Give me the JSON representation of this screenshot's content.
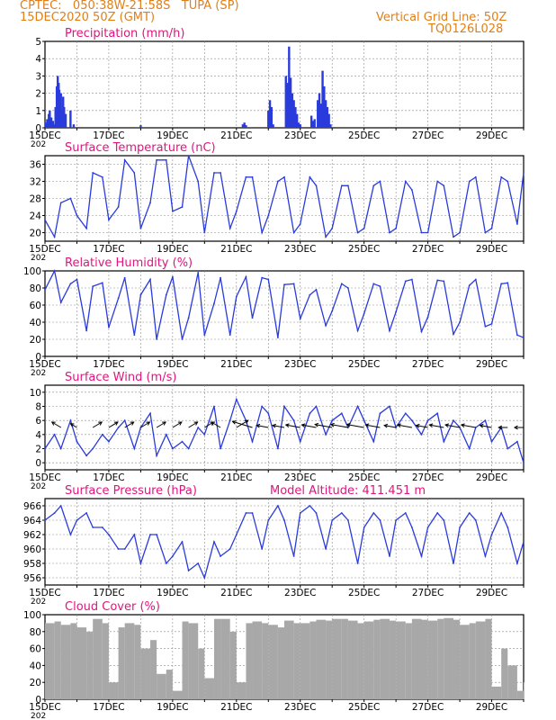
{
  "header": {
    "line1": "CPTEC:   050:38W-21:58S   TUPA (SP)",
    "line2": "15DEC2020 50Z (GMT)",
    "grid_note": "Vertical Grid Line: 50Z",
    "code": "TQ0126L028",
    "altitude": "Model Altitude: 411.451 m"
  },
  "colors": {
    "header": "#e07f18",
    "title": "#e0157d",
    "series": "#2a3bdc",
    "cloud": "#a8a8a8",
    "grid": "#8a8a8a"
  },
  "x_ticks": [
    "15DEC",
    "17DEC",
    "19DEC",
    "21DEC",
    "23DEC",
    "25DEC",
    "27DEC",
    "29DEC"
  ],
  "x_year_label": "202",
  "chart_data": [
    {
      "type": "bar",
      "title": "Precipitation (mm/h)",
      "ylim": [
        0,
        5
      ],
      "yticks": [
        0,
        1,
        2,
        3,
        4,
        5
      ],
      "grid": true,
      "x_unit": "days since 15DEC2020 00Z",
      "series": [
        {
          "x": [
            0.03,
            0.07,
            0.12,
            0.15,
            0.2,
            0.25,
            0.3,
            0.33,
            0.37,
            0.4,
            0.43,
            0.45,
            0.5,
            0.53,
            0.57,
            0.6,
            0.65,
            0.8,
            0.9,
            3.0,
            6.2,
            6.25,
            6.3,
            7.0,
            7.05,
            7.1,
            7.15,
            7.55,
            7.6,
            7.65,
            7.7,
            7.75,
            7.8,
            7.85,
            7.9,
            7.95,
            8.0,
            8.35,
            8.4,
            8.45,
            8.55,
            8.6,
            8.65,
            8.7,
            8.75,
            8.8,
            8.85,
            8.9,
            8.95
          ],
          "values": [
            0.3,
            0.5,
            0.8,
            1.0,
            0.6,
            0.4,
            0.2,
            1.2,
            2.4,
            3.0,
            2.6,
            2.2,
            2.0,
            1.0,
            1.8,
            1.2,
            0.8,
            1.0,
            0.2,
            0.15,
            0.2,
            0.3,
            0.15,
            1.0,
            1.6,
            1.2,
            0.2,
            3.0,
            2.6,
            4.7,
            2.9,
            2.0,
            1.6,
            1.2,
            0.8,
            0.3,
            0.2,
            0.7,
            0.4,
            0.5,
            1.6,
            2.0,
            1.4,
            3.3,
            2.4,
            1.6,
            1.2,
            0.8,
            0.2
          ]
        }
      ]
    },
    {
      "type": "line",
      "title": "Surface Temperature (nC)",
      "ylim": [
        18,
        38
      ],
      "yticks": [
        20,
        24,
        28,
        32,
        36
      ],
      "grid": true,
      "x_unit": "days since 15DEC2020 00Z",
      "series": [
        {
          "x": [
            0,
            0.3,
            0.5,
            0.8,
            1.0,
            1.3,
            1.5,
            1.8,
            2.0,
            2.3,
            2.5,
            2.8,
            3.0,
            3.3,
            3.5,
            3.8,
            4.0,
            4.3,
            4.5,
            4.8,
            5.0,
            5.3,
            5.5,
            5.8,
            6.0,
            6.3,
            6.5,
            6.8,
            7.0,
            7.3,
            7.5,
            7.8,
            8.0,
            8.3,
            8.5,
            8.8,
            9.0,
            9.3,
            9.5,
            9.8,
            10.0,
            10.3,
            10.5,
            10.8,
            11.0,
            11.3,
            11.5,
            11.8,
            12.0,
            12.3,
            12.5,
            12.8,
            13.0,
            13.3,
            13.5,
            13.8,
            14.0,
            14.3,
            14.5,
            14.8,
            15.0
          ],
          "values": [
            23,
            19,
            27,
            28,
            24,
            21,
            34,
            33,
            23,
            26,
            37,
            34,
            21,
            27,
            37,
            37,
            25,
            26,
            38,
            32,
            20,
            34,
            34,
            21,
            25,
            33,
            33,
            20,
            24,
            32,
            33,
            20,
            22,
            33,
            31,
            19,
            21,
            31,
            31,
            20,
            21,
            31,
            32,
            20,
            21,
            32,
            30,
            20,
            20,
            32,
            31,
            19,
            20,
            32,
            33,
            20,
            21,
            33,
            32,
            22,
            34
          ]
        }
      ]
    },
    {
      "type": "line",
      "title": "Relative Humidity (%)",
      "ylim": [
        0,
        100
      ],
      "yticks": [
        0,
        20,
        40,
        60,
        80,
        100
      ],
      "grid": true,
      "x_unit": "days since 15DEC2020 00Z",
      "series": [
        {
          "x": [
            0,
            0.3,
            0.5,
            0.8,
            1.0,
            1.3,
            1.5,
            1.8,
            2.0,
            2.3,
            2.5,
            2.8,
            3.0,
            3.3,
            3.5,
            3.8,
            4.0,
            4.3,
            4.5,
            4.8,
            5.0,
            5.3,
            5.5,
            5.8,
            6.0,
            6.3,
            6.5,
            6.8,
            7.0,
            7.3,
            7.5,
            7.8,
            8.0,
            8.3,
            8.5,
            8.8,
            9.0,
            9.3,
            9.5,
            9.8,
            10.0,
            10.3,
            10.5,
            10.8,
            11.0,
            11.3,
            11.5,
            11.8,
            12.0,
            12.3,
            12.5,
            12.8,
            13.0,
            13.3,
            13.5,
            13.8,
            14.0,
            14.3,
            14.5,
            14.8,
            15.0
          ],
          "values": [
            78,
            100,
            63,
            85,
            90,
            30,
            82,
            86,
            34,
            68,
            92,
            25,
            72,
            90,
            20,
            72,
            93,
            20,
            45,
            98,
            25,
            62,
            92,
            25,
            70,
            93,
            45,
            92,
            90,
            22,
            84,
            85,
            44,
            72,
            78,
            36,
            53,
            85,
            80,
            30,
            50,
            85,
            82,
            30,
            52,
            88,
            90,
            29,
            46,
            89,
            88,
            26,
            40,
            83,
            90,
            35,
            38,
            85,
            86,
            25,
            22
          ]
        }
      ]
    },
    {
      "type": "line",
      "title": "Surface Wind (m/s)",
      "ylim": [
        -1,
        11
      ],
      "yticks": [
        0,
        2,
        4,
        6,
        8,
        10
      ],
      "grid": true,
      "x_unit": "days since 15DEC2020 00Z",
      "series": [
        {
          "x": [
            0,
            0.3,
            0.5,
            0.8,
            1.0,
            1.3,
            1.5,
            1.8,
            2.0,
            2.3,
            2.5,
            2.8,
            3.0,
            3.3,
            3.5,
            3.8,
            4.0,
            4.3,
            4.5,
            4.8,
            5.0,
            5.3,
            5.5,
            5.8,
            6.0,
            6.3,
            6.5,
            6.8,
            7.0,
            7.3,
            7.5,
            7.8,
            8.0,
            8.3,
            8.5,
            8.8,
            9.0,
            9.3,
            9.5,
            9.8,
            10.0,
            10.3,
            10.5,
            10.8,
            11.0,
            11.3,
            11.5,
            11.8,
            12.0,
            12.3,
            12.5,
            12.8,
            13.0,
            13.3,
            13.5,
            13.8,
            14.0,
            14.3,
            14.5,
            14.8,
            15.0
          ],
          "values": [
            2,
            4,
            2,
            6,
            3,
            1,
            2,
            4,
            3,
            5,
            6,
            2,
            5,
            7,
            1,
            4,
            2,
            3,
            2,
            5,
            4,
            8,
            2,
            6,
            9,
            6,
            3,
            8,
            7,
            2,
            8,
            6,
            3,
            7,
            8,
            4,
            6,
            7,
            5,
            8,
            6,
            3,
            7,
            8,
            5,
            7,
            6,
            4,
            6,
            7,
            3,
            6,
            5,
            2,
            5,
            6,
            3,
            5,
            2,
            3,
            0
          ]
        }
      ],
      "vectors": {
        "x": [
          0.5,
          1.0,
          1.5,
          2.0,
          2.5,
          3.0,
          3.5,
          4.0,
          4.5,
          5.0,
          5.5,
          6.0,
          6.5,
          7.0,
          7.5,
          8.0,
          8.5,
          9.0,
          9.5,
          10.0,
          10.5,
          11.0,
          11.5,
          12.0,
          12.5,
          13.0,
          13.5,
          14.0,
          14.5,
          15.0
        ],
        "u": [
          -1,
          -1,
          1,
          1,
          1,
          1,
          1,
          1,
          1,
          1,
          -1,
          1,
          -1,
          -1,
          -1,
          -1,
          -1,
          -1,
          -1,
          -1,
          -1,
          -1,
          -1,
          -1,
          -1,
          -1,
          -1,
          -1,
          -1,
          -1
        ],
        "speed": [
          2,
          1,
          2,
          2,
          2,
          2,
          2,
          2,
          2,
          2,
          2,
          3,
          6,
          3,
          3,
          4,
          4,
          5,
          5,
          5,
          4,
          3,
          4,
          3,
          4,
          4,
          4,
          3,
          2,
          2
        ],
        "v": [
          1,
          1,
          1,
          1,
          1,
          1,
          1,
          1,
          1,
          1,
          1,
          1,
          0.5,
          0.3,
          0.3,
          0.3,
          0.3,
          0.3,
          0.3,
          0.3,
          0.3,
          0.3,
          0.3,
          0.3,
          0.3,
          0.3,
          0.3,
          0.3,
          0,
          0
        ]
      }
    },
    {
      "type": "line",
      "title": "Surface Pressure (hPa)",
      "ylim": [
        955,
        967
      ],
      "yticks": [
        956,
        958,
        960,
        962,
        964,
        966
      ],
      "grid": true,
      "x_unit": "days since 15DEC2020 00Z",
      "series": [
        {
          "x": [
            0,
            0.3,
            0.5,
            0.8,
            1.0,
            1.3,
            1.5,
            1.8,
            2.0,
            2.3,
            2.5,
            2.8,
            3.0,
            3.3,
            3.5,
            3.8,
            4.0,
            4.3,
            4.5,
            4.8,
            5.0,
            5.3,
            5.5,
            5.8,
            6.0,
            6.3,
            6.5,
            6.8,
            7.0,
            7.3,
            7.5,
            7.8,
            8.0,
            8.3,
            8.5,
            8.8,
            9.0,
            9.3,
            9.5,
            9.8,
            10.0,
            10.3,
            10.5,
            10.8,
            11.0,
            11.3,
            11.5,
            11.8,
            12.0,
            12.3,
            12.5,
            12.8,
            13.0,
            13.3,
            13.5,
            13.8,
            14.0,
            14.3,
            14.5,
            14.8,
            15.0
          ],
          "values": [
            964,
            965,
            966,
            962,
            964,
            965,
            963,
            963,
            962,
            960,
            960,
            962,
            958,
            962,
            962,
            958,
            959,
            961,
            957,
            958,
            956,
            961,
            959,
            960,
            962,
            965,
            965,
            960,
            964,
            966,
            964,
            959,
            965,
            966,
            965,
            960,
            964,
            965,
            964,
            958,
            963,
            965,
            964,
            959,
            964,
            965,
            963,
            959,
            963,
            965,
            964,
            958,
            963,
            965,
            964,
            959,
            962,
            965,
            963,
            958,
            961
          ]
        }
      ]
    },
    {
      "type": "area",
      "title": "Cloud Cover (%)",
      "ylim": [
        0,
        100
      ],
      "yticks": [
        0,
        20,
        40,
        60,
        80,
        100
      ],
      "grid": true,
      "x_unit": "days since 15DEC2020 00Z",
      "series": [
        {
          "x": [
            0,
            0.3,
            0.5,
            0.8,
            1.0,
            1.3,
            1.5,
            1.8,
            2.0,
            2.3,
            2.5,
            2.8,
            3.0,
            3.3,
            3.5,
            3.8,
            4.0,
            4.3,
            4.5,
            4.8,
            5.0,
            5.3,
            5.5,
            5.8,
            6.0,
            6.3,
            6.5,
            6.8,
            7.0,
            7.3,
            7.5,
            7.8,
            8.0,
            8.3,
            8.5,
            8.8,
            9.0,
            9.3,
            9.5,
            9.8,
            10.0,
            10.3,
            10.5,
            10.8,
            11.0,
            11.3,
            11.5,
            11.8,
            12.0,
            12.3,
            12.5,
            12.8,
            13.0,
            13.3,
            13.5,
            13.8,
            14.0,
            14.3,
            14.5,
            14.8,
            15.0
          ],
          "values": [
            90,
            92,
            88,
            90,
            85,
            80,
            95,
            90,
            20,
            85,
            90,
            88,
            60,
            70,
            30,
            35,
            10,
            92,
            90,
            60,
            25,
            95,
            95,
            80,
            20,
            90,
            92,
            90,
            88,
            85,
            93,
            90,
            90,
            92,
            94,
            93,
            95,
            95,
            93,
            90,
            92,
            94,
            95,
            93,
            92,
            90,
            95,
            94,
            93,
            95,
            96,
            94,
            88,
            90,
            92,
            95,
            15,
            60,
            40,
            10,
            20
          ]
        }
      ]
    }
  ]
}
